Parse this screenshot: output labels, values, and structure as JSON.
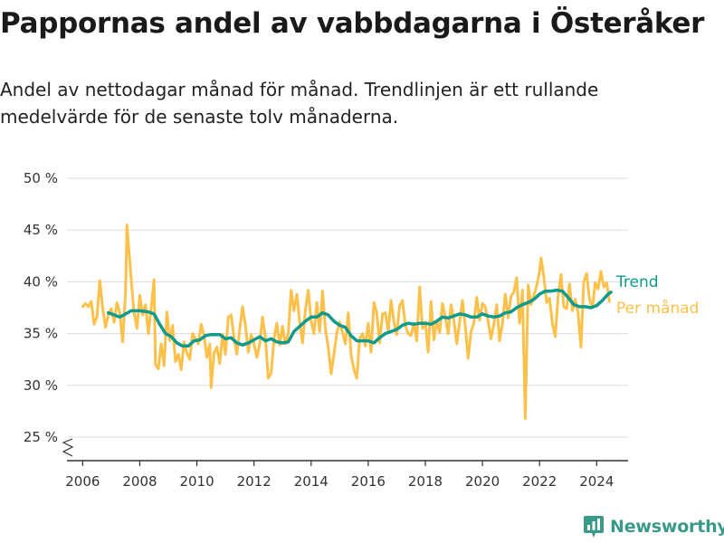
{
  "header": {
    "title": "Pappornas andel av vabbdagarna i Österåker",
    "subtitle": "Andel av nettodagar månad för månad. Trendlinjen är ett rullande medelvärde för de senaste tolv månaderna."
  },
  "brand": {
    "name": "Newsworthy",
    "icon": "newsworthy-logo-icon"
  },
  "colors": {
    "trend": "#0f9a8c",
    "monthly": "#fbc14a",
    "grid": "#dddddd",
    "axis": "#333333",
    "brand": "#3a9a8a"
  },
  "chart_data": {
    "type": "line",
    "title": "Pappornas andel av vabbdagarna i Österåker",
    "xlabel": "",
    "ylabel": "",
    "xlim": [
      2005.45,
      2025.1
    ],
    "ylim": [
      25,
      50
    ],
    "axis_break": true,
    "grid": "horizontal",
    "legend_placement": "right, at line ends",
    "x_ticks": [
      2006,
      2008,
      2010,
      2012,
      2014,
      2016,
      2018,
      2020,
      2022,
      2024
    ],
    "x_tick_labels": [
      "2006",
      "2008",
      "2010",
      "2012",
      "2014",
      "2016",
      "2018",
      "2020",
      "2022",
      "2024"
    ],
    "y_ticks": [
      25,
      30,
      35,
      40,
      45,
      50
    ],
    "y_tick_labels": [
      "25 %",
      "30 %",
      "35 %",
      "40 %",
      "45 %",
      "50 %"
    ],
    "series": [
      {
        "name": "Per månad",
        "color": "#fbc14a",
        "points": [
          [
            2006.0,
            37.6
          ],
          [
            2006.1,
            37.9
          ],
          [
            2006.2,
            37.6
          ],
          [
            2006.3,
            38.1
          ],
          [
            2006.4,
            35.9
          ],
          [
            2006.5,
            36.6
          ],
          [
            2006.6,
            40.1
          ],
          [
            2006.7,
            37.5
          ],
          [
            2006.8,
            35.6
          ],
          [
            2006.9,
            36.9
          ],
          [
            2007.0,
            37.4
          ],
          [
            2007.1,
            36.1
          ],
          [
            2007.2,
            38.0
          ],
          [
            2007.3,
            37.0
          ],
          [
            2007.4,
            34.2
          ],
          [
            2007.5,
            38.9
          ],
          [
            2007.55,
            45.5
          ],
          [
            2007.7,
            40.2
          ],
          [
            2007.8,
            37.0
          ],
          [
            2007.9,
            35.5
          ],
          [
            2008.0,
            38.7
          ],
          [
            2008.1,
            36.8
          ],
          [
            2008.2,
            37.8
          ],
          [
            2008.3,
            35.0
          ],
          [
            2008.4,
            37.5
          ],
          [
            2008.5,
            40.2
          ],
          [
            2008.55,
            32.0
          ],
          [
            2008.65,
            31.6
          ],
          [
            2008.75,
            34.0
          ],
          [
            2008.85,
            31.9
          ],
          [
            2008.95,
            37.1
          ],
          [
            2009.05,
            34.3
          ],
          [
            2009.15,
            35.8
          ],
          [
            2009.25,
            32.3
          ],
          [
            2009.35,
            33.0
          ],
          [
            2009.45,
            31.5
          ],
          [
            2009.55,
            34.2
          ],
          [
            2009.65,
            33.1
          ],
          [
            2009.75,
            32.5
          ],
          [
            2009.85,
            35.0
          ],
          [
            2009.95,
            34.5
          ],
          [
            2010.05,
            34.0
          ],
          [
            2010.15,
            35.9
          ],
          [
            2010.25,
            34.8
          ],
          [
            2010.35,
            32.7
          ],
          [
            2010.45,
            34.0
          ],
          [
            2010.5,
            29.8
          ],
          [
            2010.6,
            33.1
          ],
          [
            2010.7,
            33.7
          ],
          [
            2010.8,
            32.1
          ],
          [
            2010.9,
            34.9
          ],
          [
            2011.0,
            33.0
          ],
          [
            2011.1,
            36.6
          ],
          [
            2011.2,
            36.8
          ],
          [
            2011.3,
            34.6
          ],
          [
            2011.4,
            33.0
          ],
          [
            2011.5,
            35.4
          ],
          [
            2011.6,
            37.6
          ],
          [
            2011.7,
            35.8
          ],
          [
            2011.8,
            33.2
          ],
          [
            2011.9,
            34.9
          ],
          [
            2012.0,
            34.0
          ],
          [
            2012.1,
            32.7
          ],
          [
            2012.2,
            34.0
          ],
          [
            2012.3,
            36.6
          ],
          [
            2012.4,
            34.6
          ],
          [
            2012.5,
            30.7
          ],
          [
            2012.6,
            31.2
          ],
          [
            2012.7,
            34.5
          ],
          [
            2012.8,
            36.0
          ],
          [
            2012.9,
            33.9
          ],
          [
            2013.0,
            35.7
          ],
          [
            2013.1,
            34.0
          ],
          [
            2013.2,
            35.0
          ],
          [
            2013.3,
            39.2
          ],
          [
            2013.4,
            37.2
          ],
          [
            2013.5,
            38.8
          ],
          [
            2013.6,
            36.1
          ],
          [
            2013.7,
            34.1
          ],
          [
            2013.8,
            37.3
          ],
          [
            2013.9,
            39.2
          ],
          [
            2014.0,
            36.2
          ],
          [
            2014.1,
            35.0
          ],
          [
            2014.2,
            38.0
          ],
          [
            2014.3,
            35.2
          ],
          [
            2014.4,
            39.1
          ],
          [
            2014.5,
            35.5
          ],
          [
            2014.6,
            33.7
          ],
          [
            2014.7,
            31.1
          ],
          [
            2014.8,
            33.0
          ],
          [
            2014.9,
            35.1
          ],
          [
            2015.0,
            36.1
          ],
          [
            2015.1,
            35.1
          ],
          [
            2015.2,
            34.0
          ],
          [
            2015.3,
            37.0
          ],
          [
            2015.4,
            33.0
          ],
          [
            2015.5,
            31.5
          ],
          [
            2015.6,
            30.7
          ],
          [
            2015.7,
            34.5
          ],
          [
            2015.8,
            35.0
          ],
          [
            2015.9,
            33.8
          ],
          [
            2016.0,
            36.0
          ],
          [
            2016.1,
            33.2
          ],
          [
            2016.2,
            38.0
          ],
          [
            2016.3,
            37.0
          ],
          [
            2016.4,
            34.1
          ],
          [
            2016.5,
            36.9
          ],
          [
            2016.6,
            37.0
          ],
          [
            2016.7,
            35.2
          ],
          [
            2016.8,
            38.2
          ],
          [
            2016.9,
            36.1
          ],
          [
            2017.0,
            34.9
          ],
          [
            2017.1,
            37.7
          ],
          [
            2017.2,
            38.2
          ],
          [
            2017.3,
            35.8
          ],
          [
            2017.4,
            35.0
          ],
          [
            2017.5,
            34.8
          ],
          [
            2017.6,
            36.0
          ],
          [
            2017.7,
            34.3
          ],
          [
            2017.8,
            39.5
          ],
          [
            2017.9,
            35.5
          ],
          [
            2018.0,
            36.1
          ],
          [
            2018.1,
            33.2
          ],
          [
            2018.2,
            38.1
          ],
          [
            2018.3,
            34.4
          ],
          [
            2018.4,
            36.2
          ],
          [
            2018.5,
            35.1
          ],
          [
            2018.6,
            37.9
          ],
          [
            2018.7,
            36.6
          ],
          [
            2018.8,
            35.0
          ],
          [
            2018.9,
            37.8
          ],
          [
            2019.0,
            36.3
          ],
          [
            2019.1,
            34.0
          ],
          [
            2019.2,
            36.1
          ],
          [
            2019.3,
            38.2
          ],
          [
            2019.4,
            35.6
          ],
          [
            2019.5,
            32.6
          ],
          [
            2019.6,
            35.2
          ],
          [
            2019.7,
            36.0
          ],
          [
            2019.8,
            38.5
          ],
          [
            2019.9,
            36.3
          ],
          [
            2020.0,
            37.9
          ],
          [
            2020.1,
            37.6
          ],
          [
            2020.2,
            36.2
          ],
          [
            2020.3,
            34.5
          ],
          [
            2020.4,
            35.9
          ],
          [
            2020.5,
            37.8
          ],
          [
            2020.6,
            34.3
          ],
          [
            2020.7,
            36.0
          ],
          [
            2020.8,
            38.8
          ],
          [
            2020.9,
            36.5
          ],
          [
            2021.0,
            38.6
          ],
          [
            2021.1,
            39.0
          ],
          [
            2021.2,
            40.4
          ],
          [
            2021.3,
            36.0
          ],
          [
            2021.4,
            39.2
          ],
          [
            2021.5,
            26.8
          ],
          [
            2021.6,
            39.7
          ],
          [
            2021.7,
            37.8
          ],
          [
            2021.8,
            38.7
          ],
          [
            2021.9,
            39.6
          ],
          [
            2022.0,
            41.0
          ],
          [
            2022.05,
            42.3
          ],
          [
            2022.15,
            40.5
          ],
          [
            2022.25,
            38.0
          ],
          [
            2022.35,
            38.4
          ],
          [
            2022.45,
            36.0
          ],
          [
            2022.55,
            34.7
          ],
          [
            2022.65,
            38.6
          ],
          [
            2022.75,
            40.7
          ],
          [
            2022.85,
            37.6
          ],
          [
            2022.95,
            37.4
          ],
          [
            2023.05,
            39.8
          ],
          [
            2023.15,
            37.2
          ],
          [
            2023.25,
            38.3
          ],
          [
            2023.35,
            37.0
          ],
          [
            2023.45,
            33.7
          ],
          [
            2023.55,
            40.0
          ],
          [
            2023.65,
            40.8
          ],
          [
            2023.75,
            38.3
          ],
          [
            2023.85,
            37.5
          ],
          [
            2023.95,
            39.9
          ],
          [
            2024.05,
            39.3
          ],
          [
            2024.15,
            41.0
          ],
          [
            2024.25,
            39.5
          ],
          [
            2024.35,
            39.9
          ],
          [
            2024.45,
            38.1
          ]
        ]
      },
      {
        "name": "Trend",
        "color": "#0f9a8c",
        "points": [
          [
            2006.9,
            37.0
          ],
          [
            2007.1,
            36.8
          ],
          [
            2007.3,
            36.6
          ],
          [
            2007.5,
            36.9
          ],
          [
            2007.7,
            37.2
          ],
          [
            2008.0,
            37.2
          ],
          [
            2008.3,
            37.1
          ],
          [
            2008.5,
            36.9
          ],
          [
            2008.7,
            35.9
          ],
          [
            2008.9,
            35.0
          ],
          [
            2009.1,
            34.7
          ],
          [
            2009.3,
            34.1
          ],
          [
            2009.5,
            33.8
          ],
          [
            2009.7,
            33.8
          ],
          [
            2009.9,
            34.3
          ],
          [
            2010.1,
            34.4
          ],
          [
            2010.3,
            34.8
          ],
          [
            2010.5,
            34.9
          ],
          [
            2010.8,
            34.9
          ],
          [
            2011.0,
            34.5
          ],
          [
            2011.2,
            34.6
          ],
          [
            2011.4,
            34.1
          ],
          [
            2011.6,
            33.9
          ],
          [
            2011.8,
            34.1
          ],
          [
            2012.0,
            34.4
          ],
          [
            2012.2,
            34.7
          ],
          [
            2012.4,
            34.3
          ],
          [
            2012.6,
            34.5
          ],
          [
            2012.8,
            34.2
          ],
          [
            2013.0,
            34.1
          ],
          [
            2013.2,
            34.2
          ],
          [
            2013.4,
            35.2
          ],
          [
            2013.6,
            35.7
          ],
          [
            2013.8,
            36.2
          ],
          [
            2014.0,
            36.6
          ],
          [
            2014.2,
            36.6
          ],
          [
            2014.4,
            37.0
          ],
          [
            2014.6,
            36.8
          ],
          [
            2014.8,
            36.2
          ],
          [
            2015.0,
            35.8
          ],
          [
            2015.2,
            35.6
          ],
          [
            2015.4,
            34.8
          ],
          [
            2015.6,
            34.3
          ],
          [
            2015.8,
            34.3
          ],
          [
            2016.0,
            34.3
          ],
          [
            2016.2,
            34.1
          ],
          [
            2016.4,
            34.6
          ],
          [
            2016.6,
            35.0
          ],
          [
            2016.8,
            35.2
          ],
          [
            2017.0,
            35.4
          ],
          [
            2017.2,
            35.8
          ],
          [
            2017.4,
            36.0
          ],
          [
            2017.6,
            35.9
          ],
          [
            2017.8,
            36.0
          ],
          [
            2018.0,
            36.0
          ],
          [
            2018.2,
            35.9
          ],
          [
            2018.4,
            36.2
          ],
          [
            2018.6,
            36.6
          ],
          [
            2018.8,
            36.5
          ],
          [
            2019.0,
            36.7
          ],
          [
            2019.2,
            36.9
          ],
          [
            2019.4,
            36.8
          ],
          [
            2019.6,
            36.6
          ],
          [
            2019.8,
            36.6
          ],
          [
            2020.0,
            36.9
          ],
          [
            2020.2,
            36.7
          ],
          [
            2020.4,
            36.6
          ],
          [
            2020.6,
            36.7
          ],
          [
            2020.8,
            37.0
          ],
          [
            2021.0,
            37.1
          ],
          [
            2021.2,
            37.5
          ],
          [
            2021.4,
            37.8
          ],
          [
            2021.6,
            38.0
          ],
          [
            2021.8,
            38.3
          ],
          [
            2022.0,
            38.8
          ],
          [
            2022.2,
            39.1
          ],
          [
            2022.4,
            39.1
          ],
          [
            2022.6,
            39.2
          ],
          [
            2022.8,
            39.1
          ],
          [
            2023.0,
            38.5
          ],
          [
            2023.2,
            37.8
          ],
          [
            2023.4,
            37.6
          ],
          [
            2023.6,
            37.6
          ],
          [
            2023.8,
            37.5
          ],
          [
            2024.0,
            37.7
          ],
          [
            2024.2,
            38.2
          ],
          [
            2024.4,
            38.8
          ],
          [
            2024.5,
            39.0
          ]
        ]
      }
    ]
  }
}
